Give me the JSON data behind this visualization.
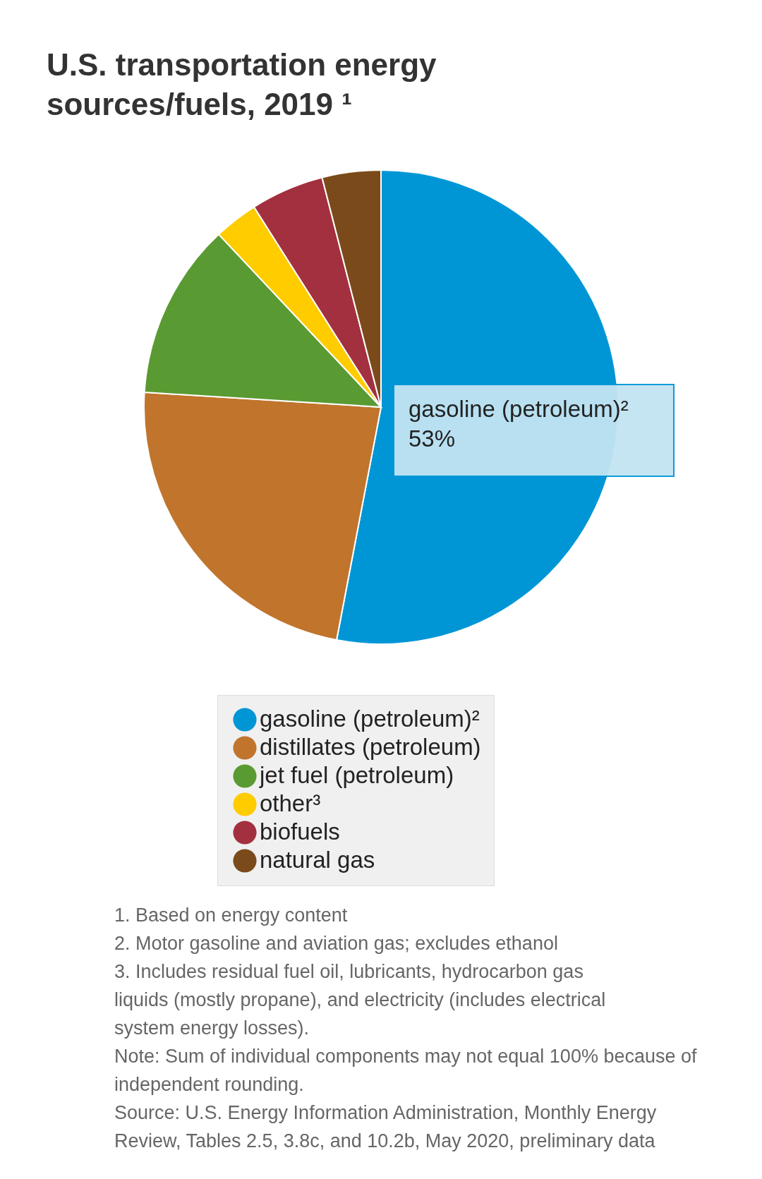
{
  "chart_data": {
    "type": "pie",
    "title": "U.S. transportation energy sources/fuels, 2019 ¹",
    "categories": [
      "gasoline (petroleum)²",
      "distillates (petroleum)",
      "jet fuel (petroleum)",
      "other³",
      "biofuels",
      "natural gas"
    ],
    "values": [
      53,
      23,
      12,
      3,
      5,
      4
    ],
    "colors": [
      "#0096d6",
      "#c0742c",
      "#5a9a32",
      "#ffcc00",
      "#a3303f",
      "#7b4a1a"
    ],
    "legend": "bottom",
    "annotations": [
      "gasoline (petroleum)²\n53%",
      "1. Based on energy content",
      "2. Motor gasoline and aviation gas; excludes ethanol",
      "3. Includes residual fuel oil, lubricants, hydrocarbon gas liquids (mostly propane), and electricity (includes electrical system energy losses).",
      "Note: Sum of individual components may not equal 100% because of independent rounding.",
      "Source: U.S. Energy Information Administration, Monthly Energy Review, Tables 2.5, 3.8c, and 10.2b, May 2020, preliminary data"
    ]
  }
}
